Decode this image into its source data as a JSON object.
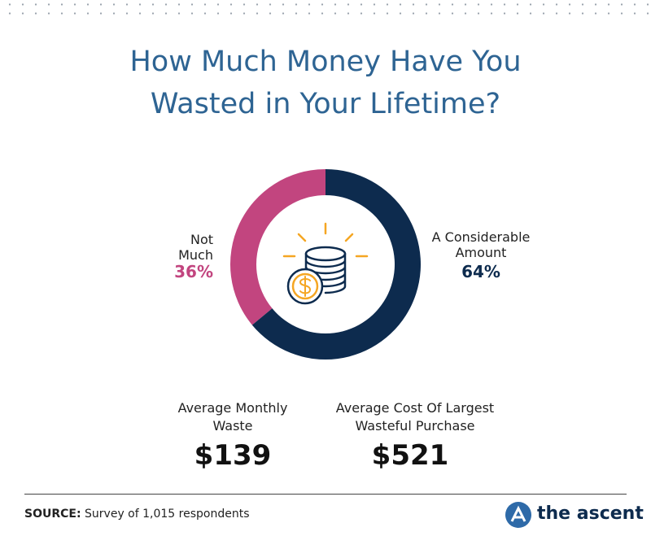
{
  "chart_data": {
    "type": "donut",
    "title": "How Much Money Have You Wasted in Your Lifetime?",
    "categories": [
      "A Considerable Amount",
      "Not Much"
    ],
    "values": [
      64,
      36
    ],
    "value_labels": [
      "64%",
      "36%"
    ],
    "colors": [
      "#0d2b4e",
      "#c2457f"
    ]
  },
  "stats": [
    {
      "label": "Average Monthly Waste",
      "value": "$139"
    },
    {
      "label": "Average Cost Of Largest Wasteful Purchase",
      "value": "$521"
    }
  ],
  "source": {
    "label": "SOURCE:",
    "text": "Survey of 1,015 respondents"
  },
  "brand": "the ascent"
}
